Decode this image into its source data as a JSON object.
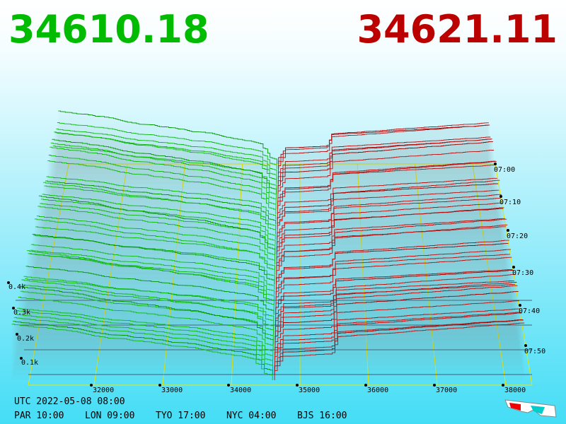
{
  "bid_price": "34610.18",
  "ask_price": "34621.11",
  "price_axis": {
    "ticks": [
      "32000",
      "33000",
      "34000",
      "35000",
      "36000",
      "37000",
      "38000"
    ]
  },
  "depth_axis": {
    "ticks": [
      "0.1k",
      "0.2k",
      "0.3k",
      "0.4k"
    ]
  },
  "time_axis": {
    "ticks": [
      "07:00",
      "07:10",
      "07:20",
      "07:30",
      "07:40",
      "07:50"
    ]
  },
  "footer": {
    "utc": "UTC 2022-05-08 08:00",
    "cities": [
      "PAR 10:00",
      "LON 09:00",
      "TYO 17:00",
      "NYC 04:00",
      "BJS 16:00"
    ]
  }
}
